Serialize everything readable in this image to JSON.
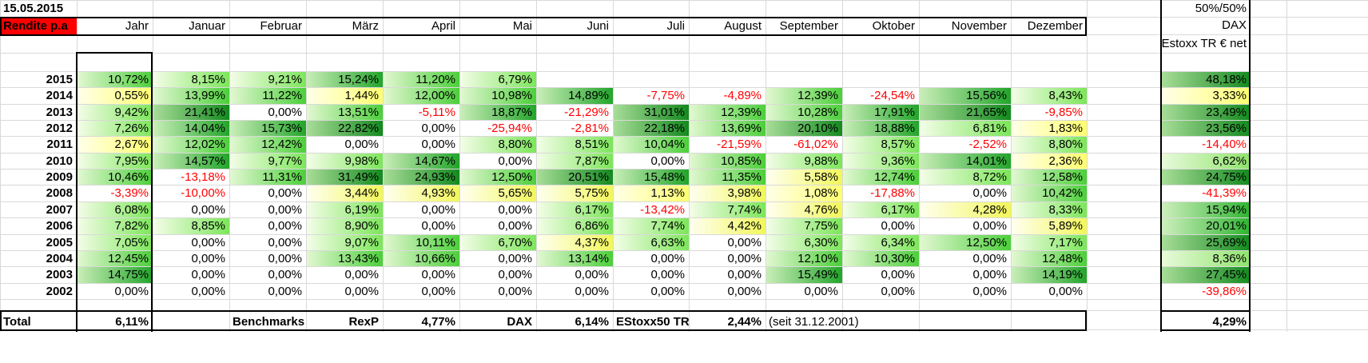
{
  "date": "15.05.2015",
  "rendite_label": "Rendite p.a",
  "headers": [
    "Jahr",
    "Januar",
    "Februar",
    "März",
    "April",
    "Mai",
    "Juni",
    "Juli",
    "August",
    "September",
    "Oktober",
    "November",
    "Dezember"
  ],
  "side_header": [
    "50%/50%",
    "DAX",
    "Estoxx TR € net"
  ],
  "rows": [
    {
      "year": "2015",
      "values": [
        "10,72%",
        "8,15%",
        "9,21%",
        "15,24%",
        "11,20%",
        "6,79%",
        "",
        "",
        "",
        "",
        "",
        "",
        ""
      ],
      "side": "48,18%"
    },
    {
      "year": "2014",
      "values": [
        "0,55%",
        "13,99%",
        "11,22%",
        "1,44%",
        "12,00%",
        "10,98%",
        "14,89%",
        "-7,75%",
        "-4,89%",
        "12,39%",
        "-24,54%",
        "15,56%",
        "8,43%"
      ],
      "side": "3,33%"
    },
    {
      "year": "2013",
      "values": [
        "9,42%",
        "21,41%",
        "0,00%",
        "13,51%",
        "-5,11%",
        "18,87%",
        "-21,29%",
        "31,01%",
        "12,39%",
        "10,28%",
        "17,91%",
        "21,65%",
        "-9,85%"
      ],
      "side": "23,49%"
    },
    {
      "year": "2012",
      "values": [
        "7,26%",
        "14,04%",
        "15,73%",
        "22,82%",
        "0,00%",
        "-25,94%",
        "-2,81%",
        "22,18%",
        "13,69%",
        "20,10%",
        "18,88%",
        "6,81%",
        "1,83%"
      ],
      "side": "23,56%"
    },
    {
      "year": "2011",
      "values": [
        "2,67%",
        "12,02%",
        "12,42%",
        "0,00%",
        "0,00%",
        "8,80%",
        "8,51%",
        "10,04%",
        "-21,59%",
        "-61,02%",
        "8,57%",
        "-2,52%",
        "8,80%"
      ],
      "side": "-14,40%"
    },
    {
      "year": "2010",
      "values": [
        "7,95%",
        "14,57%",
        "9,77%",
        "9,98%",
        "14,67%",
        "0,00%",
        "7,87%",
        "0,00%",
        "10,85%",
        "9,88%",
        "9,36%",
        "14,01%",
        "2,36%"
      ],
      "side": "6,62%"
    },
    {
      "year": "2009",
      "values": [
        "10,46%",
        "-13,18%",
        "11,31%",
        "31,49%",
        "24,93%",
        "12,50%",
        "20,51%",
        "15,48%",
        "11,35%",
        "5,58%",
        "12,74%",
        "8,72%",
        "12,58%"
      ],
      "side": "24,75%"
    },
    {
      "year": "2008",
      "values": [
        "-3,39%",
        "-10,00%",
        "0,00%",
        "3,44%",
        "4,93%",
        "5,65%",
        "5,75%",
        "1,13%",
        "3,98%",
        "1,08%",
        "-17,88%",
        "0,00%",
        "10,42%"
      ],
      "side": "-41,39%"
    },
    {
      "year": "2007",
      "values": [
        "6,08%",
        "0,00%",
        "0,00%",
        "6,19%",
        "0,00%",
        "0,00%",
        "6,17%",
        "-13,42%",
        "7,74%",
        "4,76%",
        "6,17%",
        "4,28%",
        "8,33%"
      ],
      "side": "15,94%"
    },
    {
      "year": "2006",
      "values": [
        "7,82%",
        "8,85%",
        "0,00%",
        "8,90%",
        "0,00%",
        "0,00%",
        "6,86%",
        "7,74%",
        "4,42%",
        "7,75%",
        "0,00%",
        "0,00%",
        "5,89%"
      ],
      "side": "20,01%"
    },
    {
      "year": "2005",
      "values": [
        "7,05%",
        "0,00%",
        "0,00%",
        "9,07%",
        "10,11%",
        "6,70%",
        "4,37%",
        "6,63%",
        "0,00%",
        "6,30%",
        "6,34%",
        "12,50%",
        "7,17%"
      ],
      "side": "25,69%"
    },
    {
      "year": "2004",
      "values": [
        "12,45%",
        "0,00%",
        "0,00%",
        "13,43%",
        "10,66%",
        "0,00%",
        "13,14%",
        "0,00%",
        "0,00%",
        "12,10%",
        "10,30%",
        "0,00%",
        "12,48%"
      ],
      "side": "8,36%"
    },
    {
      "year": "2003",
      "values": [
        "14,75%",
        "0,00%",
        "0,00%",
        "0,00%",
        "0,00%",
        "0,00%",
        "0,00%",
        "0,00%",
        "0,00%",
        "15,49%",
        "0,00%",
        "0,00%",
        "14,19%"
      ],
      "side": "27,45%"
    },
    {
      "year": "2002",
      "values": [
        "0,00%",
        "0,00%",
        "0,00%",
        "0,00%",
        "0,00%",
        "0,00%",
        "0,00%",
        "0,00%",
        "0,00%",
        "0,00%",
        "0,00%",
        "0,00%",
        "0,00%"
      ],
      "side": "-39,86%"
    }
  ],
  "total": {
    "label": "Total",
    "jahr": "6,11%",
    "benchmarks_label": "Benchmarks",
    "rexp_label": "RexP",
    "rexp_value": "4,77%",
    "dax_label": "DAX",
    "dax_value": "6,14%",
    "estoxx_label": "EStoxx50 TR",
    "estoxx_value": "2,44%",
    "since_note": "(seit 31.12.2001)",
    "side_value": "4,29%"
  },
  "colors": {
    "negative": "#ff0000",
    "rendite_bg": "#ff0000",
    "green_light": "#d8f7b8",
    "green_dark": "#1f7a1f",
    "yellow": "#ffff66"
  }
}
